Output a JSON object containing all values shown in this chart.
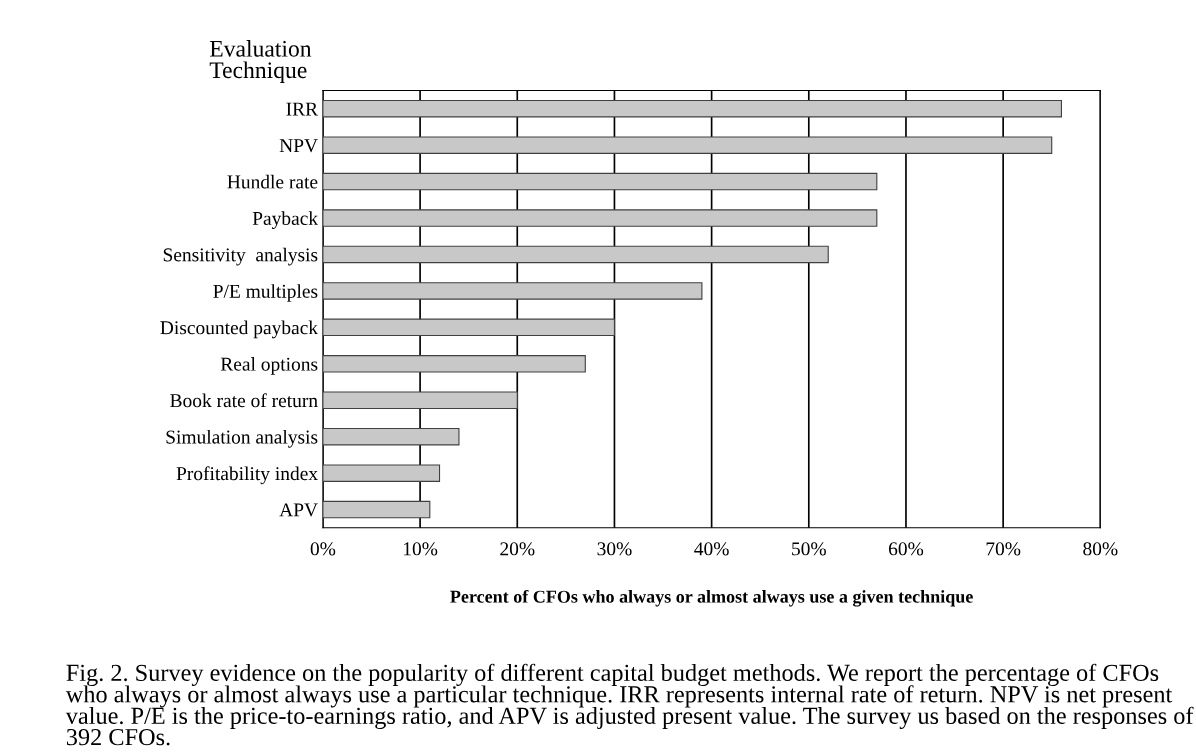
{
  "chart_data": {
    "type": "bar",
    "orientation": "horizontal",
    "ylabel": "Evaluation Technique",
    "xlabel": "Percent of CFOs who always or almost always use a given technique",
    "categories": [
      "IRR",
      "NPV",
      "Hundle rate",
      "Payback",
      "Sensitivity  analysis",
      "P/E multiples",
      "Discounted payback",
      "Real options",
      "Book rate of return",
      "Simulation analysis",
      "Profitability index",
      "APV"
    ],
    "values": [
      76,
      75,
      57,
      57,
      52,
      39,
      30,
      27,
      20,
      14,
      12,
      11
    ],
    "color": "#c8c8c8",
    "xlim": [
      0,
      80
    ],
    "xticks": [
      {
        "value": 0,
        "label": "0%"
      },
      {
        "value": 10,
        "label": "10%"
      },
      {
        "value": 20,
        "label": "20%"
      },
      {
        "value": 30,
        "label": "30%"
      },
      {
        "value": 40,
        "label": "40%"
      },
      {
        "value": 50,
        "label": "50%"
      },
      {
        "value": 60,
        "label": "60%"
      },
      {
        "value": 70,
        "label": "70%"
      },
      {
        "value": 80,
        "label": "80%"
      }
    ],
    "grid": "x",
    "annotations": [
      "Fig. 2. Survey evidence on the popularity of different capital budget methods. We report the percentage of CFOs who always or almost always use a particular technique. IRR represents internal rate of return. NPV is net present value. P/E is the price-to-earnings ratio, and APV is adjusted present value. The survey us based on the responses of 392 CFOs."
    ]
  }
}
